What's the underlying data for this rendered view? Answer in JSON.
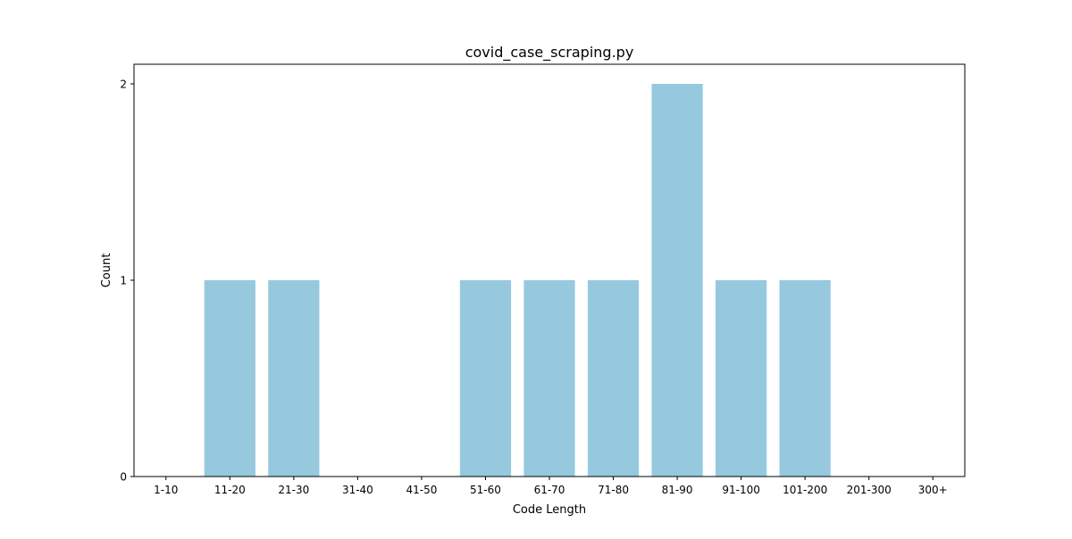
{
  "chart_data": {
    "type": "bar",
    "title": "covid_case_scraping.py",
    "xlabel": "Code Length",
    "ylabel": "Count",
    "categories": [
      "1-10",
      "11-20",
      "21-30",
      "31-40",
      "41-50",
      "51-60",
      "61-70",
      "71-80",
      "81-90",
      "91-100",
      "101-200",
      "201-300",
      "300+"
    ],
    "values": [
      0,
      1,
      1,
      0,
      0,
      1,
      1,
      1,
      2,
      1,
      1,
      0,
      0
    ],
    "ylim": [
      0,
      2.1
    ],
    "yticks": [
      0,
      1,
      2
    ],
    "grid": false,
    "legend": "none",
    "bar_color": "#96c9dd"
  }
}
